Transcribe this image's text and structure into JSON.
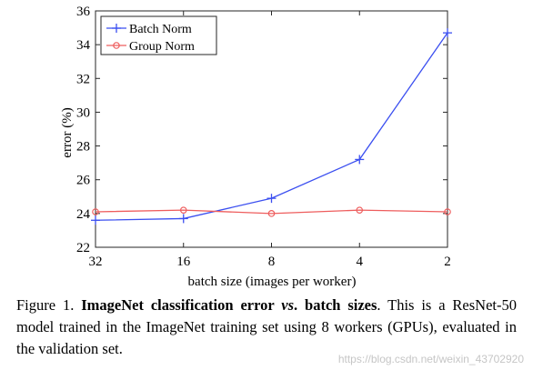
{
  "chart_data": {
    "type": "line",
    "categories": [
      "32",
      "16",
      "8",
      "4",
      "2"
    ],
    "ylabel": "error (%)",
    "xlabel": "batch size (images per worker)",
    "ylim": [
      22,
      36
    ],
    "yticks": [
      22,
      24,
      26,
      28,
      30,
      32,
      34,
      36
    ],
    "grid": false,
    "legend_position": "top-left",
    "series": [
      {
        "name": "Batch Norm",
        "color": "#3b4ff0",
        "marker": "plus",
        "values": [
          23.6,
          23.7,
          24.9,
          27.2,
          34.7
        ]
      },
      {
        "name": "Group Norm",
        "color": "#ee5d5d",
        "marker": "circle",
        "values": [
          24.1,
          24.2,
          24.0,
          24.2,
          24.1
        ]
      }
    ]
  },
  "caption": {
    "prefix": "Figure 1. ",
    "bold": "ImageNet classification error ",
    "bold_italic": "vs",
    "bold_after": ". batch sizes",
    "rest": ".  This is a ResNet-50 model trained in the ImageNet training set using 8 workers (GPUs), evaluated in the validation set."
  },
  "watermark": "https://blog.csdn.net/weixin_43702920"
}
